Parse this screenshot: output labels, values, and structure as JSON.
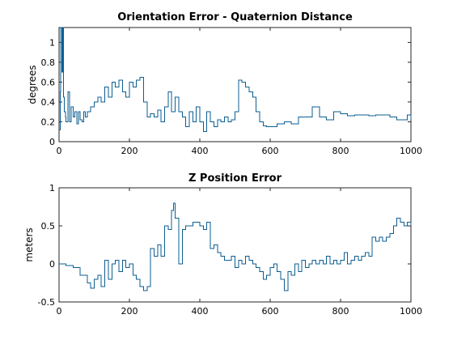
{
  "chart_data": [
    {
      "type": "line",
      "title": "Orientation Error - Quaternion Distance",
      "xlabel": "",
      "ylabel": "degrees",
      "xlim": [
        0,
        1000
      ],
      "ylim": [
        0,
        1.15
      ],
      "xticks": [
        0,
        200,
        400,
        600,
        800,
        1000
      ],
      "yticks": [
        0,
        0.2,
        0.4,
        0.6,
        0.8,
        1
      ],
      "ytick_labels": [
        "0",
        "0.2",
        "0.4",
        "0.6",
        "0.8",
        "1"
      ],
      "grid": false,
      "color": "#0b5e91",
      "series": [
        {
          "x": [
            0,
            3,
            5,
            8,
            10,
            13,
            15,
            18,
            20,
            25,
            30,
            35,
            40,
            45,
            50,
            55,
            60,
            65,
            70,
            75,
            80,
            90,
            100,
            110,
            120,
            130,
            140,
            150,
            160,
            170,
            180,
            190,
            200,
            210,
            220,
            230,
            240,
            250,
            260,
            270,
            280,
            290,
            300,
            310,
            320,
            330,
            340,
            350,
            360,
            370,
            380,
            390,
            400,
            410,
            420,
            430,
            440,
            450,
            460,
            470,
            480,
            490,
            500,
            510,
            520,
            530,
            540,
            550,
            560,
            570,
            580,
            590,
            600,
            620,
            640,
            660,
            680,
            700,
            720,
            740,
            760,
            780,
            800,
            820,
            840,
            860,
            880,
            900,
            920,
            940,
            960,
            980,
            990,
            1000
          ],
          "y": [
            0.12,
            0.5,
            1.15,
            0.7,
            1.15,
            0.45,
            0.3,
            0.25,
            0.2,
            0.5,
            0.2,
            0.35,
            0.25,
            0.3,
            0.18,
            0.3,
            0.22,
            0.2,
            0.3,
            0.25,
            0.3,
            0.35,
            0.4,
            0.45,
            0.4,
            0.55,
            0.45,
            0.6,
            0.55,
            0.62,
            0.5,
            0.45,
            0.6,
            0.55,
            0.62,
            0.65,
            0.4,
            0.25,
            0.28,
            0.25,
            0.32,
            0.2,
            0.35,
            0.5,
            0.3,
            0.45,
            0.3,
            0.25,
            0.15,
            0.3,
            0.2,
            0.35,
            0.2,
            0.1,
            0.3,
            0.2,
            0.15,
            0.22,
            0.2,
            0.25,
            0.2,
            0.22,
            0.3,
            0.62,
            0.6,
            0.55,
            0.5,
            0.45,
            0.3,
            0.2,
            0.16,
            0.15,
            0.15,
            0.18,
            0.2,
            0.18,
            0.25,
            0.25,
            0.35,
            0.25,
            0.22,
            0.3,
            0.28,
            0.26,
            0.27,
            0.27,
            0.26,
            0.27,
            0.27,
            0.25,
            0.22,
            0.22,
            0.27,
            0.22
          ]
        }
      ]
    },
    {
      "type": "line",
      "title": "Z Position Error",
      "xlabel": "",
      "ylabel": "meters",
      "xlim": [
        0,
        1000
      ],
      "ylim": [
        -0.5,
        1
      ],
      "xticks": [
        0,
        200,
        400,
        600,
        800,
        1000
      ],
      "yticks": [
        -0.5,
        0,
        0.5,
        1
      ],
      "ytick_labels": [
        "-0.5",
        "0",
        "0.5",
        "1"
      ],
      "grid": false,
      "color": "#0b5e91",
      "series": [
        {
          "x": [
            0,
            20,
            40,
            60,
            80,
            90,
            100,
            110,
            120,
            130,
            140,
            150,
            160,
            170,
            180,
            190,
            200,
            210,
            220,
            230,
            240,
            250,
            260,
            270,
            280,
            290,
            300,
            310,
            320,
            325,
            330,
            340,
            350,
            360,
            370,
            380,
            390,
            400,
            410,
            420,
            430,
            440,
            450,
            460,
            470,
            480,
            490,
            500,
            510,
            520,
            530,
            540,
            550,
            560,
            570,
            580,
            590,
            600,
            610,
            620,
            630,
            640,
            650,
            660,
            670,
            680,
            690,
            700,
            710,
            720,
            730,
            740,
            750,
            760,
            770,
            780,
            790,
            800,
            810,
            820,
            830,
            840,
            850,
            860,
            870,
            880,
            890,
            900,
            910,
            920,
            930,
            940,
            950,
            960,
            970,
            980,
            990,
            1000
          ],
          "y": [
            0,
            -0.02,
            -0.05,
            -0.15,
            -0.25,
            -0.32,
            -0.2,
            -0.15,
            -0.3,
            0.05,
            -0.2,
            0.0,
            0.05,
            -0.1,
            0.05,
            -0.05,
            0.0,
            -0.15,
            -0.2,
            -0.3,
            -0.35,
            -0.3,
            0.2,
            0.1,
            0.25,
            0.1,
            0.5,
            0.45,
            0.7,
            0.8,
            0.6,
            0.0,
            0.45,
            0.5,
            0.5,
            0.55,
            0.55,
            0.5,
            0.45,
            0.55,
            0.2,
            0.25,
            0.15,
            0.1,
            0.05,
            0.05,
            0.1,
            -0.05,
            0.05,
            0.0,
            0.1,
            0.05,
            0.0,
            -0.05,
            -0.1,
            -0.2,
            -0.15,
            -0.05,
            0.0,
            -0.1,
            -0.2,
            -0.35,
            -0.1,
            -0.15,
            0.0,
            -0.1,
            0.05,
            -0.05,
            0.0,
            0.05,
            0.0,
            0.05,
            0.0,
            0.1,
            0.0,
            0.05,
            0.0,
            0.05,
            0.15,
            0.0,
            0.05,
            0.1,
            0.05,
            0.1,
            0.15,
            0.1,
            0.35,
            0.3,
            0.35,
            0.3,
            0.35,
            0.4,
            0.5,
            0.6,
            0.55,
            0.5,
            0.55,
            0.5
          ]
        }
      ]
    }
  ]
}
